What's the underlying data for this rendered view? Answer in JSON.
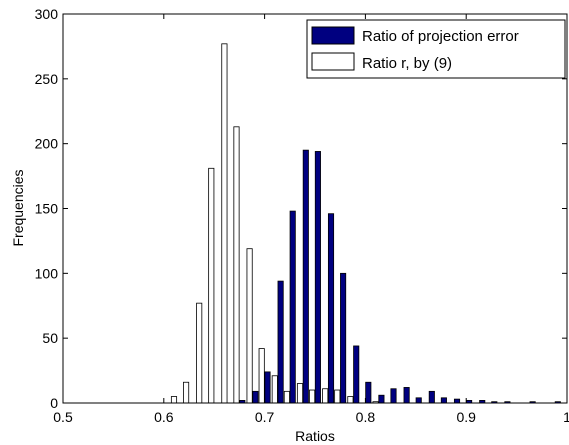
{
  "chart_data": {
    "type": "bar",
    "xlabel": "Ratios",
    "ylabel": "Frequencies",
    "xlim": [
      0.5,
      1.0
    ],
    "ylim": [
      0,
      300
    ],
    "xticks": [
      "0.5",
      "0.6",
      "0.7",
      "0.8",
      "0.9",
      "1"
    ],
    "yticks": [
      "0",
      "50",
      "100",
      "150",
      "200",
      "250",
      "300"
    ],
    "grid": false,
    "legend_position": "top-right",
    "series": [
      {
        "name": "Ratio of projection error",
        "color": "#000080",
        "x": [
          0.675,
          0.688,
          0.7,
          0.713,
          0.725,
          0.738,
          0.75,
          0.763,
          0.775,
          0.788,
          0.8,
          0.813,
          0.825,
          0.838,
          0.85,
          0.863,
          0.875,
          0.888,
          0.9,
          0.913,
          0.925,
          0.938,
          0.95,
          0.963,
          0.975,
          0.988
        ],
        "values": [
          2,
          9,
          24,
          94,
          148,
          195,
          194,
          146,
          100,
          44,
          16,
          6,
          11,
          12,
          4,
          9,
          4,
          3,
          2,
          2,
          1,
          1,
          0,
          1,
          0,
          1
        ]
      },
      {
        "name": "Ratio r, by (9)",
        "color": "#ffffff",
        "x": [
          0.613,
          0.625,
          0.638,
          0.65,
          0.663,
          0.675,
          0.688,
          0.7,
          0.713,
          0.725,
          0.738,
          0.75,
          0.763,
          0.775,
          0.788,
          0.8,
          0.813,
          0.825
        ],
        "values": [
          5,
          16,
          77,
          181,
          277,
          213,
          119,
          42,
          21,
          9,
          15,
          10,
          11,
          10,
          5,
          0,
          1,
          0
        ]
      }
    ]
  }
}
